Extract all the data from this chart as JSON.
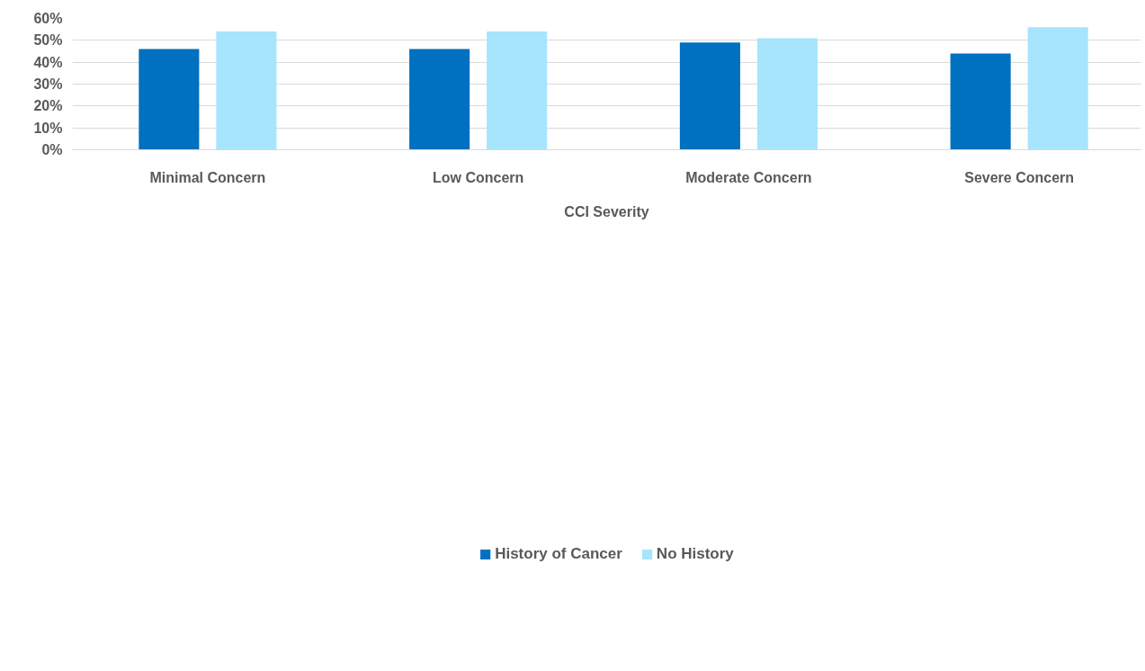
{
  "chart_data": {
    "type": "bar",
    "xlabel": "CCI Severity",
    "categories": [
      "Minimal Concern",
      "Low Concern",
      "Moderate Concern",
      "Severe Concern"
    ],
    "series": [
      {
        "name": "History of Cancer",
        "color": "#0070c0",
        "values": [
          46,
          46,
          49,
          44
        ]
      },
      {
        "name": "No History",
        "color": "#a6e5fb",
        "values": [
          54,
          54,
          51,
          56
        ]
      }
    ],
    "ylim": [
      0,
      60
    ],
    "yticks": [
      {
        "value": 0,
        "label": "0%"
      },
      {
        "value": 10,
        "label": "10%"
      },
      {
        "value": 20,
        "label": "20%"
      },
      {
        "value": 30,
        "label": "30%"
      },
      {
        "value": 40,
        "label": "40%"
      },
      {
        "value": 50,
        "label": "50%"
      },
      {
        "value": 60,
        "label": "60%"
      }
    ],
    "grid": "y",
    "legend": "bottom"
  }
}
